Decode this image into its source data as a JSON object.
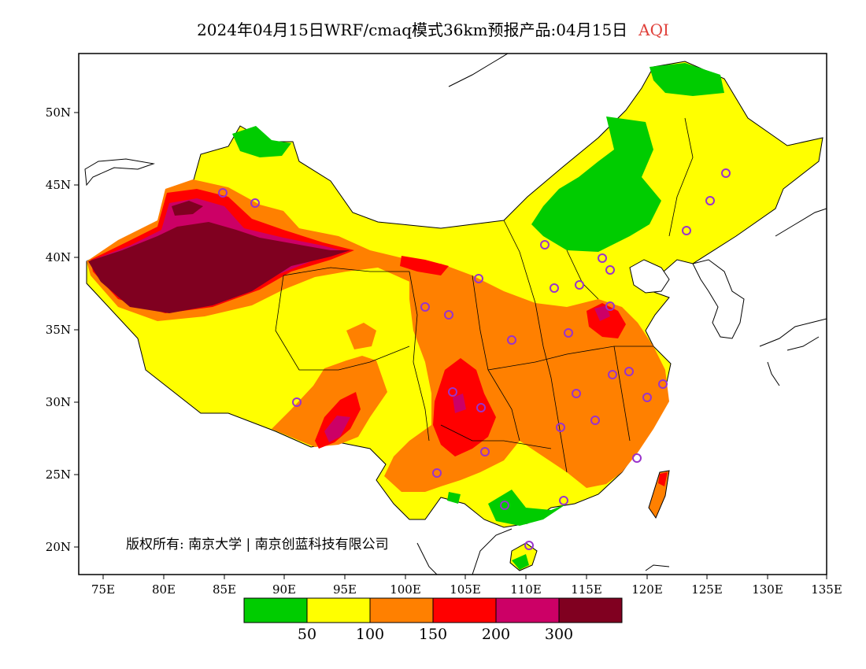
{
  "title": {
    "main": "2024年04月15日WRF/cmaq模式36km预报产品:04月15日",
    "variable": "AQI",
    "variable_color": "#e0403a"
  },
  "map": {
    "x_axis_labels": [
      "75E",
      "80E",
      "85E",
      "90E",
      "95E",
      "100E",
      "105E",
      "110E",
      "115E",
      "120E",
      "125E",
      "130E",
      "135E"
    ],
    "y_axis_labels": [
      "50N",
      "45N",
      "40N",
      "35N",
      "30N",
      "25N",
      "20N"
    ],
    "copyright": "版权所有: 南京大学 | 南京创蓝科技有限公司"
  },
  "legend": {
    "colors": [
      "#00cc00",
      "#ffff00",
      "#ff8000",
      "#ff0000",
      "#cc0066",
      "#800020"
    ],
    "thresholds": [
      "50",
      "100",
      "150",
      "200",
      "300"
    ]
  },
  "colors": {
    "good": "#00cc00",
    "moderate": "#ffff00",
    "unhealthy_sensitive": "#ff8000",
    "unhealthy": "#ff0000",
    "very_unhealthy": "#cc0066",
    "hazardous": "#800020",
    "station_marker": "#9933cc"
  }
}
